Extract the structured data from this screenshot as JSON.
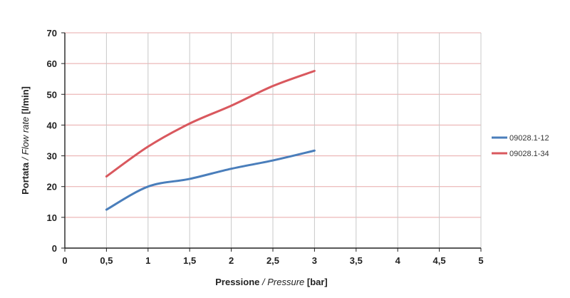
{
  "chart_data": {
    "type": "line",
    "title": "",
    "xlabel": {
      "it_main": "Pressione",
      "sep": " / ",
      "en": "Pressure",
      "unit": " [bar]"
    },
    "ylabel": {
      "it_main": "Portata",
      "sep": " / ",
      "en": "Flow rate",
      "unit": " [l/min]"
    },
    "xlim": [
      0,
      5
    ],
    "ylim": [
      0,
      70
    ],
    "x_ticks": [
      "0",
      "0,5",
      "1",
      "1,5",
      "2",
      "2,5",
      "3",
      "3,5",
      "4",
      "4,5",
      "5"
    ],
    "y_ticks": [
      "0",
      "10",
      "20",
      "30",
      "40",
      "50",
      "60",
      "70"
    ],
    "grid": true,
    "legend_position": "right",
    "series": [
      {
        "name": "09028.1-12",
        "color": "#4a7ebb",
        "x": [
          0.5,
          1,
          1.5,
          2,
          2.5,
          3
        ],
        "y": [
          12.5,
          20,
          22.5,
          25.8,
          28.5,
          31.7
        ]
      },
      {
        "name": "09028.1-34",
        "color": "#d9585e",
        "x": [
          0.5,
          1,
          1.5,
          2,
          2.5,
          3
        ],
        "y": [
          23.3,
          33,
          40.5,
          46.3,
          52.7,
          57.6
        ]
      }
    ]
  }
}
